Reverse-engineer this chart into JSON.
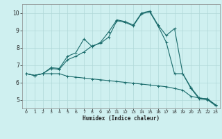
{
  "xlabel": "Humidex (Indice chaleur)",
  "xlim": [
    -0.5,
    23.5
  ],
  "ylim": [
    4.5,
    10.5
  ],
  "yticks": [
    5,
    6,
    7,
    8,
    9,
    10
  ],
  "xticks": [
    0,
    1,
    2,
    3,
    4,
    5,
    6,
    7,
    8,
    9,
    10,
    11,
    12,
    13,
    14,
    15,
    16,
    17,
    18,
    19,
    20,
    21,
    22,
    23
  ],
  "background_color": "#cff0f0",
  "line_color": "#1a6b6b",
  "grid_color": "#b0d8d8",
  "series1_x": [
    0,
    1,
    2,
    3,
    4,
    5,
    6,
    7,
    8,
    9,
    10,
    11,
    12,
    13,
    14,
    15,
    16,
    17,
    18,
    19,
    20,
    21,
    22,
    23
  ],
  "series1_y": [
    6.5,
    6.4,
    6.5,
    6.5,
    6.5,
    6.35,
    6.3,
    6.25,
    6.2,
    6.15,
    6.1,
    6.05,
    6.0,
    5.95,
    5.9,
    5.85,
    5.8,
    5.75,
    5.65,
    5.55,
    5.2,
    5.1,
    5.05,
    4.7
  ],
  "series2_x": [
    0,
    1,
    2,
    3,
    4,
    5,
    6,
    7,
    8,
    9,
    10,
    11,
    12,
    13,
    14,
    15,
    16,
    17,
    18,
    19,
    20,
    21,
    22,
    23
  ],
  "series2_y": [
    6.5,
    6.4,
    6.5,
    6.85,
    6.8,
    7.5,
    7.7,
    8.5,
    8.05,
    8.3,
    8.9,
    9.6,
    9.5,
    9.3,
    10.0,
    10.1,
    9.3,
    8.7,
    9.1,
    6.5,
    5.7,
    5.1,
    5.05,
    4.7
  ],
  "series3_x": [
    0,
    1,
    2,
    3,
    4,
    5,
    6,
    7,
    8,
    9,
    10,
    11,
    12,
    13,
    14,
    15,
    16,
    17,
    18,
    19,
    20,
    21,
    22,
    23
  ],
  "series3_y": [
    6.5,
    6.4,
    6.5,
    6.8,
    6.75,
    7.3,
    7.5,
    7.75,
    8.1,
    8.25,
    8.6,
    9.55,
    9.45,
    9.25,
    9.95,
    10.05,
    9.25,
    8.3,
    6.5,
    6.5,
    5.65,
    5.05,
    5.0,
    4.65
  ]
}
